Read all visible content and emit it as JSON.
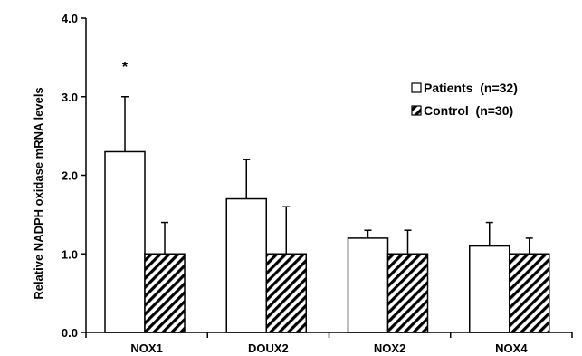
{
  "chart_data": {
    "type": "bar",
    "ylabel": "Relative NADPH oxidase mRNA levels",
    "xlabel": "",
    "ylim": [
      0,
      4
    ],
    "yticks": [
      "0.0",
      "1.0",
      "2.0",
      "3.0",
      "4.0"
    ],
    "categories": [
      "NOX1",
      "DOUX2",
      "NOX2",
      "NOX4"
    ],
    "series": [
      {
        "name": "Patients  (n=32)",
        "values": [
          2.3,
          1.7,
          1.2,
          1.1
        ],
        "errors": [
          0.7,
          0.5,
          0.1,
          0.3
        ],
        "fill": "#ffffff"
      },
      {
        "name": "Control  (n=30)",
        "values": [
          1.0,
          1.0,
          1.0,
          1.0
        ],
        "errors": [
          0.4,
          0.6,
          0.3,
          0.2
        ],
        "fill": "hatch"
      }
    ],
    "annotations": [
      {
        "text": "*",
        "category": "NOX1",
        "series": 0
      }
    ],
    "legend_position": "top-right",
    "grid": false,
    "colors": {
      "axis": "#000000",
      "bar_stroke": "#000000",
      "hatch": "#000000"
    }
  }
}
